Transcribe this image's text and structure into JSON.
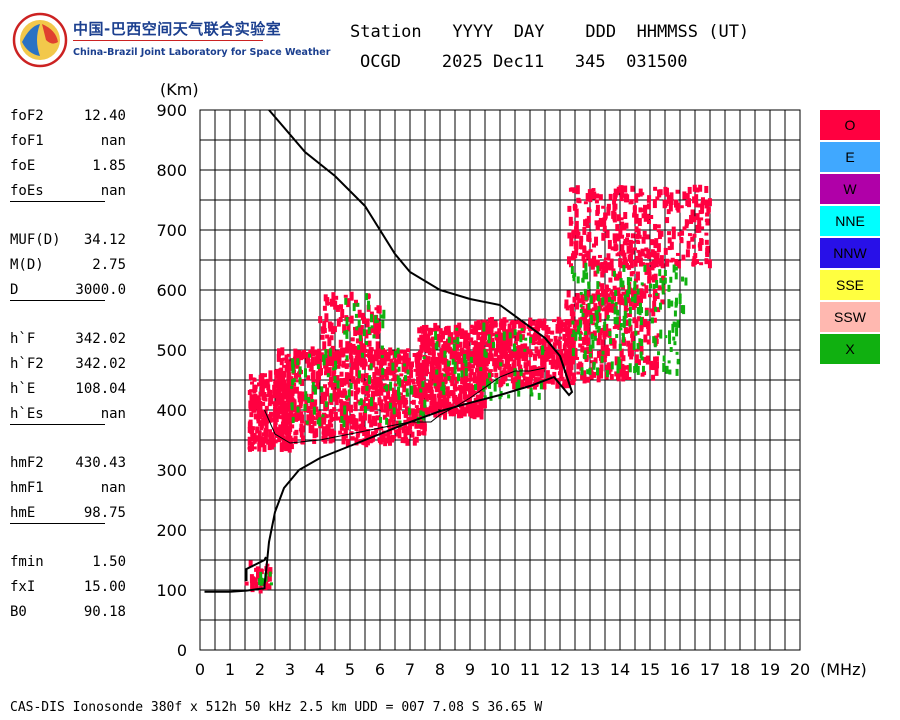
{
  "header": {
    "logo_cn": "中国-巴西空间天气联合实验室",
    "logo_en": "China-Brazil Joint Laboratory for Space Weather",
    "columns_line": "Station   YYYY  DAY    DDD  HHMMSS (UT)",
    "values_line": "OCGD    2025 Dec11   345  031500"
  },
  "params": [
    [
      {
        "name": "foF2",
        "value": "12.40"
      },
      {
        "name": "foF1",
        "value": "nan"
      },
      {
        "name": "foE",
        "value": "1.85"
      },
      {
        "name": "foEs",
        "value": "nan"
      }
    ],
    [
      {
        "name": "MUF(D)",
        "value": "34.12"
      },
      {
        "name": "M(D)",
        "value": "2.75"
      },
      {
        "name": "D",
        "value": "3000.0"
      }
    ],
    [
      {
        "name": "h`F",
        "value": "342.02"
      },
      {
        "name": "h`F2",
        "value": "342.02"
      },
      {
        "name": "h`E",
        "value": "108.04"
      },
      {
        "name": "h`Es",
        "value": "nan"
      }
    ],
    [
      {
        "name": "hmF2",
        "value": "430.43"
      },
      {
        "name": "hmF1",
        "value": "nan"
      },
      {
        "name": "hmE",
        "value": "98.75"
      }
    ],
    [
      {
        "name": "fmin",
        "value": "1.50"
      },
      {
        "name": "fxI",
        "value": "15.00"
      },
      {
        "name": "B0",
        "value": "90.18"
      }
    ]
  ],
  "legend": [
    {
      "label": "O",
      "color": "#ff0040"
    },
    {
      "label": "E",
      "color": "#40a8ff"
    },
    {
      "label": "W",
      "color": "#b000a8"
    },
    {
      "label": "NNE",
      "color": "#00ffff"
    },
    {
      "label": "NNW",
      "color": "#2810e8"
    },
    {
      "label": "SSE",
      "color": "#ffff40"
    },
    {
      "label": "SSW",
      "color": "#ffb8b0"
    },
    {
      "label": "X",
      "color": "#10b010"
    }
  ],
  "footer": "CAS-DIS Ionosonde 380f x 512h 50 kHz 2.5 km UDD = 007 7.08 S 36.65 W",
  "chart_data": {
    "type": "scatter",
    "xlabel": "(MHz)",
    "ylabel": "(Km)",
    "xlim": [
      0,
      20
    ],
    "ylim": [
      0,
      900
    ],
    "xticks": [
      0,
      1,
      2,
      3,
      4,
      5,
      6,
      7,
      8,
      9,
      10,
      11,
      12,
      13,
      14,
      15,
      16,
      17,
      18,
      19,
      20
    ],
    "yticks": [
      0,
      100,
      200,
      300,
      400,
      500,
      600,
      700,
      800,
      900
    ],
    "grid": true,
    "legend_position": "right",
    "series": [
      {
        "name": "O",
        "color": "#ff0040",
        "clusters": [
          {
            "xmin": 1.55,
            "xmax": 2.35,
            "ymin": 95,
            "ymax": 150,
            "n": 30
          },
          {
            "xmin": 1.65,
            "xmax": 3.1,
            "ymin": 335,
            "ymax": 460,
            "n": 260
          },
          {
            "xmin": 2.5,
            "xmax": 7.5,
            "ymin": 345,
            "ymax": 500,
            "n": 800
          },
          {
            "xmin": 4.0,
            "xmax": 6.0,
            "ymin": 470,
            "ymax": 590,
            "n": 120
          },
          {
            "xmin": 7.3,
            "xmax": 9.5,
            "ymin": 390,
            "ymax": 540,
            "n": 480
          },
          {
            "xmin": 9.2,
            "xmax": 12.5,
            "ymin": 440,
            "ymax": 550,
            "n": 500
          },
          {
            "xmin": 12.2,
            "xmax": 15.3,
            "ymin": 450,
            "ymax": 600,
            "n": 300
          },
          {
            "xmin": 13.0,
            "xmax": 15.5,
            "ymin": 580,
            "ymax": 660,
            "n": 80
          },
          {
            "xmin": 12.3,
            "xmax": 17.0,
            "ymin": 640,
            "ymax": 770,
            "n": 320
          }
        ]
      },
      {
        "name": "X",
        "color": "#10b010",
        "clusters": [
          {
            "xmin": 1.9,
            "xmax": 2.45,
            "ymin": 105,
            "ymax": 130,
            "n": 10
          },
          {
            "xmin": 3.0,
            "xmax": 7.5,
            "ymin": 375,
            "ymax": 500,
            "n": 90
          },
          {
            "xmin": 4.8,
            "xmax": 6.2,
            "ymin": 500,
            "ymax": 590,
            "n": 25
          },
          {
            "xmin": 7.8,
            "xmax": 11.5,
            "ymin": 420,
            "ymax": 540,
            "n": 70
          },
          {
            "xmin": 12.4,
            "xmax": 16.2,
            "ymin": 460,
            "ymax": 640,
            "n": 180
          }
        ]
      }
    ],
    "traces": [
      {
        "name": "true_height_profile",
        "points": [
          [
            0.15,
            97
          ],
          [
            1.0,
            97
          ],
          [
            1.55,
            99
          ],
          [
            2.15,
            103
          ],
          [
            2.15,
            108
          ],
          [
            2.2,
            130
          ],
          [
            2.3,
            180
          ],
          [
            2.5,
            230
          ],
          [
            2.8,
            270
          ],
          [
            3.3,
            300
          ],
          [
            4.0,
            320
          ],
          [
            5.0,
            340
          ],
          [
            6.0,
            360
          ],
          [
            7.0,
            380
          ],
          [
            8.0,
            398
          ],
          [
            9.0,
            412
          ],
          [
            10.0,
            425
          ],
          [
            11.0,
            440
          ],
          [
            11.8,
            455
          ],
          [
            12.3,
            425
          ],
          [
            12.4,
            430
          ],
          [
            12.0,
            490
          ],
          [
            11.5,
            520
          ],
          [
            10.0,
            575
          ],
          [
            9.0,
            585
          ],
          [
            8.0,
            600
          ],
          [
            7.0,
            630
          ],
          [
            6.5,
            660
          ],
          [
            5.5,
            740
          ],
          [
            4.5,
            790
          ],
          [
            3.5,
            830
          ],
          [
            2.3,
            900
          ]
        ]
      },
      {
        "name": "trace_fine",
        "points": [
          [
            2.15,
            400
          ],
          [
            2.5,
            360
          ],
          [
            3.0,
            345
          ],
          [
            4.0,
            350
          ],
          [
            5.0,
            360
          ],
          [
            6.0,
            370
          ],
          [
            7.0,
            380
          ],
          [
            7.7,
            380
          ],
          [
            8.0,
            392
          ],
          [
            8.5,
            405
          ],
          [
            9.0,
            420
          ],
          [
            10.0,
            455
          ],
          [
            10.5,
            465
          ],
          [
            11.0,
            465
          ],
          [
            11.5,
            470
          ]
        ]
      },
      {
        "name": "trace_low",
        "points": [
          [
            1.55,
            115
          ],
          [
            1.55,
            135
          ],
          [
            2.15,
            150
          ],
          [
            2.2,
            155
          ]
        ]
      }
    ]
  }
}
